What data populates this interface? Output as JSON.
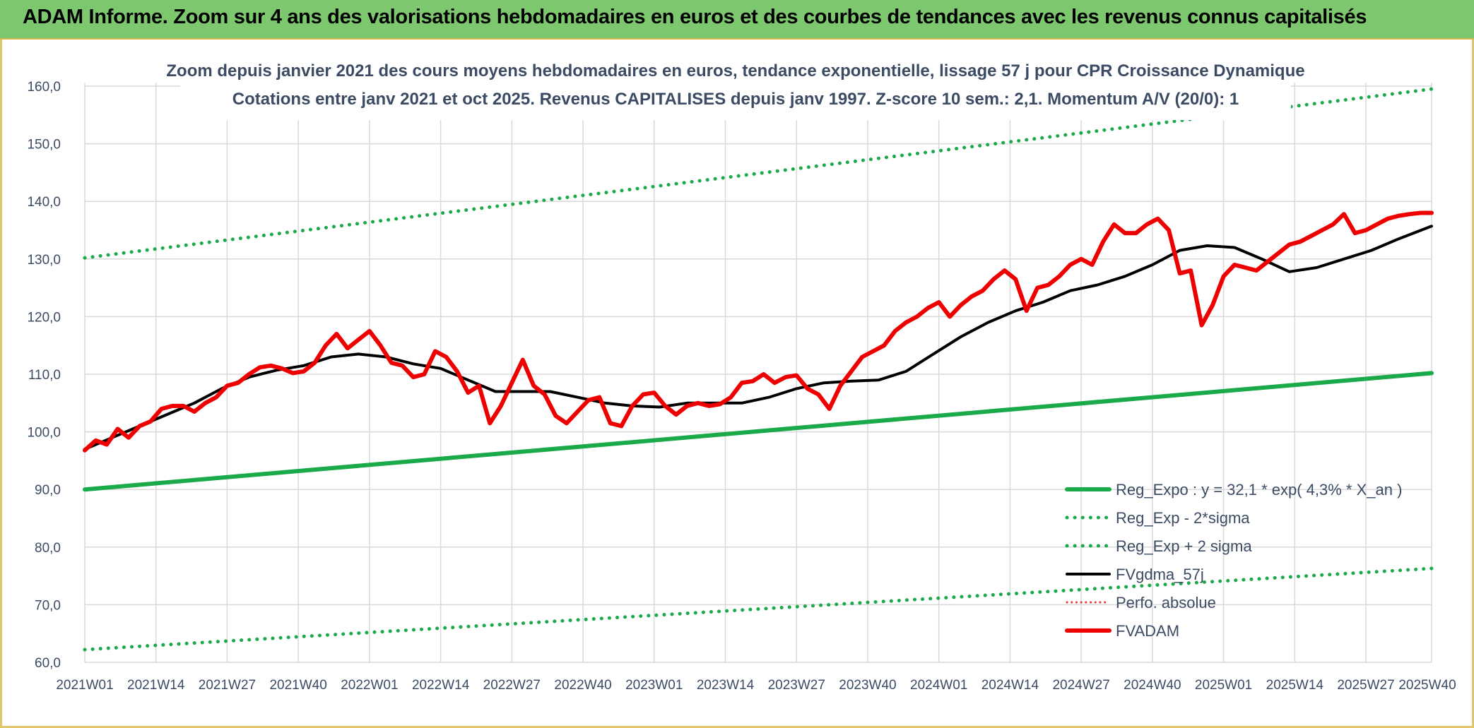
{
  "header": {
    "title": "ADAM Informe. Zoom sur 4 ans des valorisations hebdomadaires en euros et des courbes de tendances avec les revenus connus capitalisés"
  },
  "chart_data": {
    "type": "line",
    "title": "Zoom depuis janvier 2021 des cours moyens hebdomadaires en euros, tendance exponentielle, lissage 57 j pour CPR Croissance Dynamique",
    "subtitle": "Cotations entre janv 2021 et oct 2025. Revenus CAPITALISES depuis janv 1997. Z-score 10 sem.: 2,1. Momentum A/V (20/0): 1",
    "xlabel": "",
    "ylabel": "",
    "ylim": [
      60,
      160
    ],
    "yticks": [
      "60,0",
      "70,0",
      "80,0",
      "90,0",
      "100,0",
      "110,0",
      "120,0",
      "130,0",
      "140,0",
      "150,0",
      "160,0"
    ],
    "x_range": [
      0,
      246
    ],
    "xticks": [
      {
        "x": 0,
        "label": "2021W01"
      },
      {
        "x": 13,
        "label": "2021W14"
      },
      {
        "x": 26,
        "label": "2021W27"
      },
      {
        "x": 39,
        "label": "2021W40"
      },
      {
        "x": 52,
        "label": "2022W01"
      },
      {
        "x": 65,
        "label": "2022W14"
      },
      {
        "x": 78,
        "label": "2022W27"
      },
      {
        "x": 91,
        "label": "2022W40"
      },
      {
        "x": 104,
        "label": "2023W01"
      },
      {
        "x": 117,
        "label": "2023W14"
      },
      {
        "x": 130,
        "label": "2023W27"
      },
      {
        "x": 143,
        "label": "2023W40"
      },
      {
        "x": 156,
        "label": "2024W01"
      },
      {
        "x": 169,
        "label": "2024W14"
      },
      {
        "x": 182,
        "label": "2024W27"
      },
      {
        "x": 195,
        "label": "2024W40"
      },
      {
        "x": 208,
        "label": "2025W01"
      },
      {
        "x": 221,
        "label": "2025W14"
      },
      {
        "x": 234,
        "label": "2025W27"
      },
      {
        "x": 247,
        "label": "2025W40"
      }
    ],
    "grid": true,
    "legend_position": "bottom-right",
    "series": [
      {
        "name": "Reg_Expo : y = 32,1 * exp( 4,3% *  X_an )",
        "color": "#1aaa4a",
        "style": "solid",
        "width": 6,
        "x": [
          0,
          246
        ],
        "values": [
          90.0,
          110.2
        ]
      },
      {
        "name": "Reg_Exp - 2*sigma",
        "color": "#1aaa4a",
        "style": "dotted",
        "width": 5,
        "x": [
          0,
          246
        ],
        "values": [
          62.2,
          76.3
        ]
      },
      {
        "name": "Reg_Exp + 2 sigma",
        "color": "#1aaa4a",
        "style": "dotted",
        "width": 5,
        "x": [
          0,
          246
        ],
        "values": [
          130.2,
          159.5
        ]
      },
      {
        "name": "FVgdma_57j",
        "color": "#000000",
        "style": "solid",
        "width": 4,
        "x": [
          0,
          5,
          10,
          15,
          20,
          25,
          30,
          35,
          40,
          45,
          50,
          55,
          60,
          65,
          70,
          75,
          80,
          85,
          90,
          95,
          100,
          105,
          110,
          115,
          120,
          125,
          130,
          135,
          140,
          145,
          150,
          155,
          160,
          165,
          170,
          175,
          180,
          185,
          190,
          195,
          200,
          205,
          210,
          215,
          220,
          225,
          230,
          235,
          240,
          246
        ],
        "values": [
          97.0,
          99.0,
          101.0,
          103.0,
          105.0,
          107.5,
          109.5,
          110.7,
          111.5,
          113.0,
          113.5,
          113.0,
          111.8,
          111.0,
          109.0,
          107.0,
          107.0,
          107.0,
          106.0,
          105.0,
          104.5,
          104.3,
          105.0,
          105.0,
          105.0,
          106.0,
          107.5,
          108.5,
          108.8,
          109.0,
          110.5,
          113.5,
          116.5,
          119.0,
          121.0,
          122.5,
          124.5,
          125.5,
          127.0,
          129.0,
          131.5,
          132.3,
          132.0,
          130.0,
          127.8,
          128.5,
          130.0,
          131.5,
          133.5,
          135.7
        ]
      },
      {
        "name": "Perfo. absolue",
        "color": "#e53935",
        "style": "dotted",
        "width": 3,
        "x": [],
        "values": []
      },
      {
        "name": "FVADAM",
        "color": "#ee0000",
        "style": "solid",
        "width": 6,
        "x": [
          0,
          2,
          4,
          6,
          8,
          10,
          12,
          14,
          16,
          18,
          20,
          22,
          24,
          26,
          28,
          30,
          32,
          34,
          36,
          38,
          40,
          42,
          44,
          46,
          48,
          50,
          52,
          54,
          56,
          58,
          60,
          62,
          64,
          66,
          68,
          70,
          72,
          74,
          76,
          78,
          80,
          82,
          84,
          86,
          88,
          90,
          92,
          94,
          96,
          98,
          100,
          102,
          104,
          106,
          108,
          110,
          112,
          114,
          116,
          118,
          120,
          122,
          124,
          126,
          128,
          130,
          132,
          134,
          136,
          138,
          140,
          142,
          144,
          146,
          148,
          150,
          152,
          154,
          156,
          158,
          160,
          162,
          164,
          166,
          168,
          170,
          172,
          174,
          176,
          178,
          180,
          182,
          184,
          186,
          188,
          190,
          192,
          194,
          196,
          198,
          200,
          202,
          204,
          206,
          208,
          210,
          212,
          214,
          216,
          218,
          220,
          222,
          224,
          226,
          228,
          230,
          232,
          234,
          236,
          238,
          240,
          242,
          244,
          246
        ],
        "values": [
          96.8,
          98.5,
          97.8,
          100.5,
          99.0,
          101.0,
          101.8,
          104.0,
          104.5,
          104.5,
          103.5,
          105.0,
          106.0,
          108.0,
          108.5,
          110.0,
          111.2,
          111.5,
          111.0,
          110.2,
          110.5,
          112.0,
          115.0,
          117.0,
          114.5,
          116.0,
          117.5,
          115.0,
          112.0,
          111.5,
          109.5,
          110.0,
          114.0,
          113.0,
          110.5,
          106.8,
          108.0,
          101.5,
          104.5,
          108.5,
          112.5,
          108.0,
          106.5,
          102.8,
          101.5,
          103.5,
          105.5,
          106.0,
          101.5,
          101.0,
          104.5,
          106.5,
          106.8,
          104.5,
          103.0,
          104.5,
          105.0,
          104.5,
          104.8,
          106.0,
          108.5,
          108.8,
          110.0,
          108.5,
          109.5,
          109.8,
          107.5,
          106.5,
          104.0,
          108.0,
          110.5,
          113.0,
          114.0,
          115.0,
          117.5,
          119.0,
          120.0,
          121.5,
          122.5,
          120.0,
          122.0,
          123.5,
          124.5,
          126.5,
          128.0,
          126.5,
          121.0,
          125.0,
          125.5,
          127.0,
          129.0,
          130.0,
          129.0,
          133.0,
          136.0,
          134.5,
          134.5,
          136.0,
          137.0,
          135.0,
          127.5,
          128.0,
          118.5,
          122.0,
          127.0,
          129.0,
          128.5,
          128.0,
          129.5,
          131.0,
          132.5,
          133.0,
          134.0,
          135.0,
          136.0,
          137.8,
          134.5,
          135.0,
          136.0,
          137.0,
          137.5,
          137.8,
          138.0,
          138.0
        ]
      }
    ]
  }
}
